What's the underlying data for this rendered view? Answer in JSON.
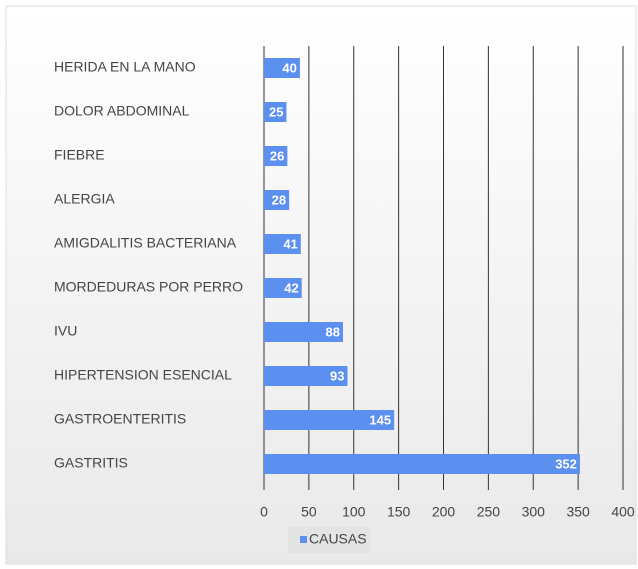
{
  "chart_data": {
    "type": "hbar",
    "categories": [
      "HERIDA EN LA MANO",
      "DOLOR ABDOMINAL",
      "FIEBRE",
      "ALERGIA",
      "AMIGDALITIS BACTERIANA",
      "MORDEDURAS POR PERRO",
      "IVU",
      "HIPERTENSION ESENCIAL",
      "GASTROENTERITIS",
      "GASTRITIS"
    ],
    "series": [
      {
        "name": "CAUSAS",
        "color": "#5b8ff0",
        "values": [
          40,
          25,
          26,
          28,
          41,
          42,
          88,
          93,
          145,
          352
        ]
      }
    ],
    "xlim": [
      0,
      400
    ],
    "xticks": [
      0,
      50,
      100,
      150,
      200,
      250,
      300,
      350,
      400
    ],
    "grid": true,
    "legend": "bottom"
  }
}
